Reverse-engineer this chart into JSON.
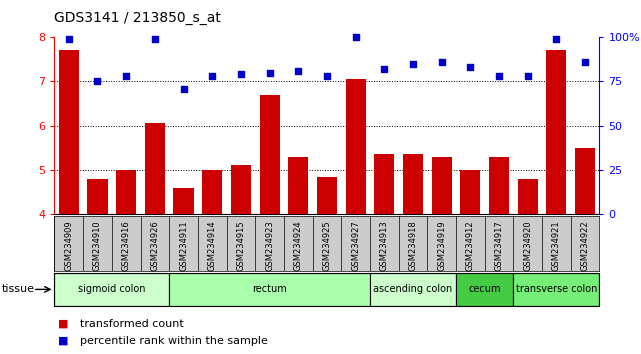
{
  "title": "GDS3141 / 213850_s_at",
  "samples": [
    "GSM234909",
    "GSM234910",
    "GSM234916",
    "GSM234926",
    "GSM234911",
    "GSM234914",
    "GSM234915",
    "GSM234923",
    "GSM234924",
    "GSM234925",
    "GSM234927",
    "GSM234913",
    "GSM234918",
    "GSM234919",
    "GSM234912",
    "GSM234917",
    "GSM234920",
    "GSM234921",
    "GSM234922"
  ],
  "bar_values": [
    7.7,
    4.8,
    5.0,
    6.05,
    4.6,
    5.0,
    5.1,
    6.7,
    5.3,
    4.85,
    7.05,
    5.35,
    5.35,
    5.3,
    5.0,
    5.3,
    4.8,
    7.7,
    5.5
  ],
  "dot_values": [
    99,
    75,
    78,
    99,
    71,
    78,
    79,
    80,
    81,
    78,
    100,
    82,
    85,
    86,
    83,
    78,
    78,
    99,
    86
  ],
  "bar_color": "#cc0000",
  "dot_color": "#0000cc",
  "ylim_left": [
    4,
    8
  ],
  "ylim_right": [
    0,
    100
  ],
  "yticks_left": [
    4,
    5,
    6,
    7,
    8
  ],
  "yticks_right": [
    0,
    25,
    50,
    75,
    100
  ],
  "ytick_labels_right": [
    "0",
    "25",
    "50",
    "75",
    "100%"
  ],
  "grid_values": [
    5,
    6,
    7
  ],
  "tissues": [
    {
      "label": "sigmoid colon",
      "start": 0,
      "end": 4,
      "color": "#ccffcc"
    },
    {
      "label": "rectum",
      "start": 4,
      "end": 11,
      "color": "#aaffaa"
    },
    {
      "label": "ascending colon",
      "start": 11,
      "end": 14,
      "color": "#ccffcc"
    },
    {
      "label": "cecum",
      "start": 14,
      "end": 16,
      "color": "#44cc44"
    },
    {
      "label": "transverse colon",
      "start": 16,
      "end": 19,
      "color": "#77ee77"
    }
  ],
  "legend_bar_label": "transformed count",
  "legend_dot_label": "percentile rank within the sample",
  "tissue_label": "tissue",
  "background_color": "#ffffff",
  "plot_bg_color": "#ffffff",
  "tick_area_color": "#cccccc"
}
